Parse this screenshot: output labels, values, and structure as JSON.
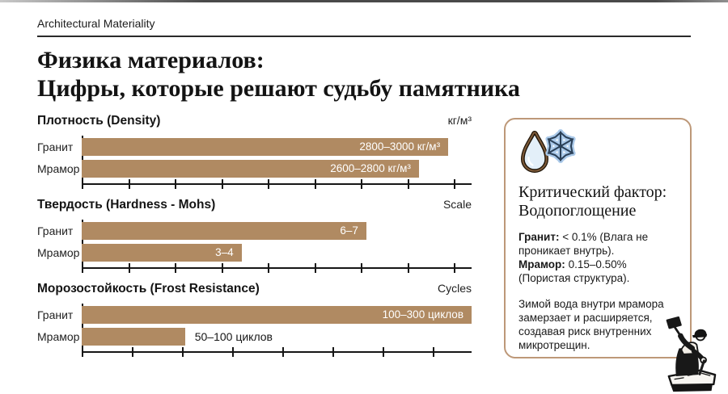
{
  "page": {
    "eyebrow": "Architectural Materiality",
    "title_line1": "Физика материалов:",
    "title_line2": "Цифры, которые решают судьбу памятника"
  },
  "chart_data": [
    {
      "type": "bar",
      "title": "Плотность (Density)",
      "unit": "кг/м³",
      "categories": [
        "Гранит",
        "Мрамор"
      ],
      "values": [
        [
          2800,
          3000
        ],
        [
          2600,
          2800
        ]
      ],
      "value_labels": [
        "2800–3000 кг/м³",
        "2600–2800 кг/м³"
      ],
      "bar_pct": [
        94,
        86.5
      ],
      "label_inside": [
        true,
        true
      ],
      "xlim": [
        0,
        3200
      ],
      "ticks": 9,
      "tick_span_pct": 95.5
    },
    {
      "type": "bar",
      "title": "Твердость (Hardness - Mohs)",
      "unit": "Scale",
      "categories": [
        "Гранит",
        "Мрамор"
      ],
      "values": [
        [
          6,
          7
        ],
        [
          3,
          4
        ]
      ],
      "value_labels": [
        "6–7",
        "3–4"
      ],
      "bar_pct": [
        73,
        41
      ],
      "label_inside": [
        true,
        true
      ],
      "xlim": [
        0,
        10
      ],
      "ticks": 9,
      "tick_span_pct": 95.5
    },
    {
      "type": "bar",
      "title": "Морозостойкость (Frost Resistance)",
      "unit": "Cycles",
      "categories": [
        "Гранит",
        "Мрамор"
      ],
      "values": [
        [
          100,
          300
        ],
        [
          50,
          100
        ]
      ],
      "value_labels": [
        "100–300 циклов",
        "50–100 циклов"
      ],
      "bar_pct": [
        100,
        26.5
      ],
      "label_inside": [
        true,
        false
      ],
      "xlim": [
        0,
        300
      ],
      "ticks": 8,
      "tick_span_pct": 90
    }
  ],
  "panel": {
    "heading": "Критический фактор: Водопоглощение",
    "granite_label": "Гранит:",
    "granite_text": "< 0.1% (Влага не проникает внутрь).",
    "marble_label": "Мрамор:",
    "marble_text": "0.15–0.50% (Пористая структура).",
    "note": "Зимой вода внутри мрамора замерзает и расширяется, создавая риск внутренних микротрещин.",
    "icons": [
      "water-drop-icon",
      "snowflake-icon",
      "sculptor-illustration"
    ]
  },
  "colors": {
    "bar": "#b08a62",
    "panel_border": "#bd9878",
    "text": "#1a1a1a",
    "bar_label": "#ffffff",
    "drop_outline": "#7e5a39",
    "drop_fill": "#e3eff9",
    "flake_fill": "#aac9e9",
    "flake_outline": "#2b4057"
  }
}
